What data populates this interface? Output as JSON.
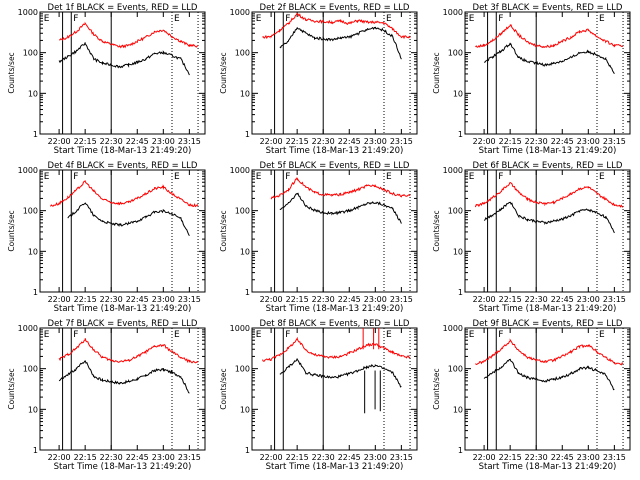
{
  "figure": {
    "xlabel": "Start Time (18-Mar-13 21:49:20)",
    "ylabel": "Counts/sec",
    "yticks": [
      "1",
      "10",
      "100",
      "1000"
    ],
    "xticks": [
      "22:00",
      "22:15",
      "22:30",
      "22:45",
      "23:00",
      "23:15"
    ],
    "markers": [
      "E",
      "F",
      "E"
    ],
    "colors": {
      "events": "#000000",
      "lld": "#ff0000",
      "background": "#ffffff"
    }
  },
  "chart_data": [
    {
      "type": "line",
      "title": "Det 1f BLACK = Events, RED = LLD",
      "xlabel": "Start Time (18-Mar-13 21:49:20)",
      "ylabel": "Counts/sec",
      "ylim": [
        1,
        1000
      ],
      "yscale": "log",
      "x": [
        "21:55",
        "22:00",
        "22:05",
        "22:10",
        "22:15",
        "22:20",
        "22:25",
        "22:30",
        "22:35",
        "22:40",
        "22:45",
        "22:50",
        "22:55",
        "23:00",
        "23:05",
        "23:10",
        "23:15",
        "23:20"
      ],
      "series": [
        {
          "name": "LLD",
          "color": "#ff0000",
          "values": [
            null,
            200,
            240,
            330,
            520,
            280,
            190,
            160,
            140,
            150,
            190,
            240,
            330,
            360,
            250,
            190,
            150,
            145
          ]
        },
        {
          "name": "Events",
          "color": "#000000",
          "values": [
            null,
            60,
            80,
            110,
            170,
            70,
            55,
            50,
            45,
            50,
            58,
            70,
            95,
            100,
            85,
            70,
            30,
            null
          ]
        }
      ]
    },
    {
      "type": "line",
      "title": "Det 2f BLACK = Events, RED = LLD",
      "xlabel": "Start Time (18-Mar-13 21:49:20)",
      "ylabel": "Counts/sec",
      "ylim": [
        1,
        1000
      ],
      "yscale": "log",
      "x": [
        "21:55",
        "22:00",
        "22:05",
        "22:10",
        "22:15",
        "22:20",
        "22:25",
        "22:30",
        "22:35",
        "22:40",
        "22:45",
        "22:50",
        "22:55",
        "23:00",
        "23:05",
        "23:10",
        "23:15",
        "23:20"
      ],
      "series": [
        {
          "name": "LLD",
          "color": "#ff0000",
          "values": [
            240,
            250,
            360,
            520,
            900,
            650,
            600,
            580,
            560,
            600,
            520,
            620,
            560,
            560,
            540,
            380,
            250,
            240
          ]
        },
        {
          "name": "Events",
          "color": "#000000",
          "values": [
            null,
            null,
            130,
            190,
            420,
            300,
            230,
            220,
            210,
            230,
            240,
            300,
            360,
            420,
            350,
            250,
            70,
            null
          ]
        }
      ]
    },
    {
      "type": "line",
      "title": "Det 3f BLACK = Events, RED = LLD",
      "xlabel": "Start Time (18-Mar-13 21:49:20)",
      "ylabel": "Counts/sec",
      "ylim": [
        1,
        1000
      ],
      "yscale": "log",
      "x": [
        "21:55",
        "22:00",
        "22:05",
        "22:10",
        "22:15",
        "22:20",
        "22:25",
        "22:30",
        "22:35",
        "22:40",
        "22:45",
        "22:50",
        "22:55",
        "23:00",
        "23:05",
        "23:10",
        "23:15",
        "23:20"
      ],
      "series": [
        {
          "name": "LLD",
          "color": "#ff0000",
          "values": [
            140,
            150,
            200,
            300,
            480,
            270,
            180,
            150,
            140,
            150,
            190,
            240,
            330,
            360,
            250,
            190,
            150,
            145
          ]
        },
        {
          "name": "Events",
          "color": "#000000",
          "values": [
            null,
            60,
            80,
            110,
            170,
            75,
            60,
            55,
            50,
            55,
            62,
            75,
            100,
            105,
            90,
            70,
            30,
            null
          ]
        }
      ]
    },
    {
      "type": "line",
      "title": "Det 4f BLACK = Events, RED = LLD",
      "xlabel": "Start Time (18-Mar-13 21:49:20)",
      "ylabel": "Counts/sec",
      "ylim": [
        1,
        1000
      ],
      "yscale": "log",
      "x": [
        "21:55",
        "22:00",
        "22:05",
        "22:10",
        "22:15",
        "22:20",
        "22:25",
        "22:30",
        "22:35",
        "22:40",
        "22:45",
        "22:50",
        "22:55",
        "23:00",
        "23:05",
        "23:10",
        "23:15",
        "23:20"
      ],
      "series": [
        {
          "name": "LLD",
          "color": "#ff0000",
          "values": [
            130,
            150,
            210,
            320,
            520,
            300,
            190,
            160,
            150,
            160,
            200,
            260,
            350,
            380,
            260,
            190,
            140,
            130
          ]
        },
        {
          "name": "Events",
          "color": "#000000",
          "values": [
            null,
            null,
            65,
            100,
            160,
            75,
            55,
            48,
            44,
            48,
            56,
            70,
            92,
            98,
            82,
            65,
            25,
            null
          ]
        }
      ]
    },
    {
      "type": "line",
      "title": "Det 5f BLACK = Events, RED = LLD",
      "xlabel": "Start Time (18-Mar-13 21:49:20)",
      "ylabel": "Counts/sec",
      "ylim": [
        1,
        1000
      ],
      "yscale": "log",
      "x": [
        "21:55",
        "22:00",
        "22:05",
        "22:10",
        "22:15",
        "22:20",
        "22:25",
        "22:30",
        "22:35",
        "22:40",
        "22:45",
        "22:50",
        "22:55",
        "23:00",
        "23:05",
        "23:10",
        "23:15",
        "23:20"
      ],
      "series": [
        {
          "name": "LLD",
          "color": "#ff0000",
          "values": [
            null,
            200,
            240,
            330,
            620,
            380,
            280,
            250,
            240,
            250,
            280,
            330,
            400,
            420,
            330,
            260,
            230,
            230
          ]
        },
        {
          "name": "Events",
          "color": "#000000",
          "values": [
            null,
            null,
            110,
            150,
            270,
            130,
            100,
            90,
            85,
            90,
            100,
            120,
            150,
            160,
            140,
            110,
            50,
            null
          ]
        }
      ]
    },
    {
      "type": "line",
      "title": "Det 6f BLACK = Events, RED = LLD",
      "xlabel": "Start Time (18-Mar-13 21:49:20)",
      "ylabel": "Counts/sec",
      "ylim": [
        1,
        1000
      ],
      "yscale": "log",
      "x": [
        "21:55",
        "22:00",
        "22:05",
        "22:10",
        "22:15",
        "22:20",
        "22:25",
        "22:30",
        "22:35",
        "22:40",
        "22:45",
        "22:50",
        "22:55",
        "23:00",
        "23:05",
        "23:10",
        "23:15",
        "23:20"
      ],
      "series": [
        {
          "name": "LLD",
          "color": "#ff0000",
          "values": [
            130,
            150,
            210,
            310,
            480,
            280,
            190,
            160,
            150,
            160,
            200,
            260,
            350,
            380,
            260,
            190,
            140,
            130
          ]
        },
        {
          "name": "Events",
          "color": "#000000",
          "values": [
            null,
            60,
            80,
            110,
            170,
            75,
            60,
            55,
            50,
            55,
            62,
            75,
            100,
            105,
            90,
            70,
            30,
            null
          ]
        }
      ]
    },
    {
      "type": "line",
      "title": "Det 7f BLACK = Events, RED = LLD",
      "xlabel": "Start Time (18-Mar-13 21:49:20)",
      "ylabel": "Counts/sec",
      "ylim": [
        1,
        1000
      ],
      "yscale": "log",
      "x": [
        "21:55",
        "22:00",
        "22:05",
        "22:10",
        "22:15",
        "22:20",
        "22:25",
        "22:30",
        "22:35",
        "22:40",
        "22:45",
        "22:50",
        "22:55",
        "23:00",
        "23:05",
        "23:10",
        "23:15",
        "23:20"
      ],
      "series": [
        {
          "name": "LLD",
          "color": "#ff0000",
          "values": [
            null,
            170,
            220,
            320,
            520,
            290,
            190,
            160,
            150,
            160,
            200,
            260,
            350,
            380,
            260,
            190,
            150,
            145
          ]
        },
        {
          "name": "Events",
          "color": "#000000",
          "values": [
            null,
            50,
            70,
            100,
            160,
            65,
            52,
            48,
            44,
            48,
            56,
            68,
            90,
            96,
            80,
            65,
            25,
            null
          ]
        }
      ]
    },
    {
      "type": "line",
      "title": "Det 8f BLACK = Events, RED = LLD",
      "xlabel": "Start Time (18-Mar-13 21:49:20)",
      "ylabel": "Counts/sec",
      "ylim": [
        1,
        1000
      ],
      "yscale": "log",
      "x": [
        "21:55",
        "22:00",
        "22:05",
        "22:10",
        "22:15",
        "22:20",
        "22:25",
        "22:30",
        "22:35",
        "22:40",
        "22:45",
        "22:50",
        "22:55",
        "23:00",
        "23:05",
        "23:10",
        "23:15",
        "23:20"
      ],
      "series": [
        {
          "name": "LLD",
          "color": "#ff0000",
          "values": [
            160,
            170,
            220,
            320,
            520,
            290,
            220,
            200,
            190,
            200,
            240,
            300,
            380,
            400,
            320,
            250,
            200,
            190
          ]
        },
        {
          "name": "Events",
          "color": "#000000",
          "values": [
            null,
            null,
            70,
            110,
            170,
            80,
            70,
            65,
            60,
            65,
            75,
            90,
            110,
            120,
            100,
            80,
            35,
            null
          ]
        }
      ],
      "spikes": [
        {
          "x": "22:53",
          "lld": 1000,
          "events": 8
        },
        {
          "x": "22:59",
          "lld": 1000,
          "events": 10
        },
        {
          "x": "23:02",
          "lld": 1000,
          "events": 9
        }
      ]
    },
    {
      "type": "line",
      "title": "Det 9f BLACK = Events, RED = LLD",
      "xlabel": "Start Time (18-Mar-13 21:49:20)",
      "ylabel": "Counts/sec",
      "ylim": [
        1,
        1000
      ],
      "yscale": "log",
      "x": [
        "21:55",
        "22:00",
        "22:05",
        "22:10",
        "22:15",
        "22:20",
        "22:25",
        "22:30",
        "22:35",
        "22:40",
        "22:45",
        "22:50",
        "22:55",
        "23:00",
        "23:05",
        "23:10",
        "23:15",
        "23:20"
      ],
      "series": [
        {
          "name": "LLD",
          "color": "#ff0000",
          "values": [
            130,
            150,
            210,
            310,
            480,
            280,
            190,
            160,
            150,
            160,
            200,
            260,
            350,
            380,
            260,
            190,
            140,
            130
          ]
        },
        {
          "name": "Events",
          "color": "#000000",
          "values": [
            null,
            60,
            80,
            110,
            170,
            75,
            60,
            55,
            50,
            55,
            62,
            75,
            100,
            105,
            90,
            70,
            30,
            null
          ]
        }
      ]
    }
  ]
}
